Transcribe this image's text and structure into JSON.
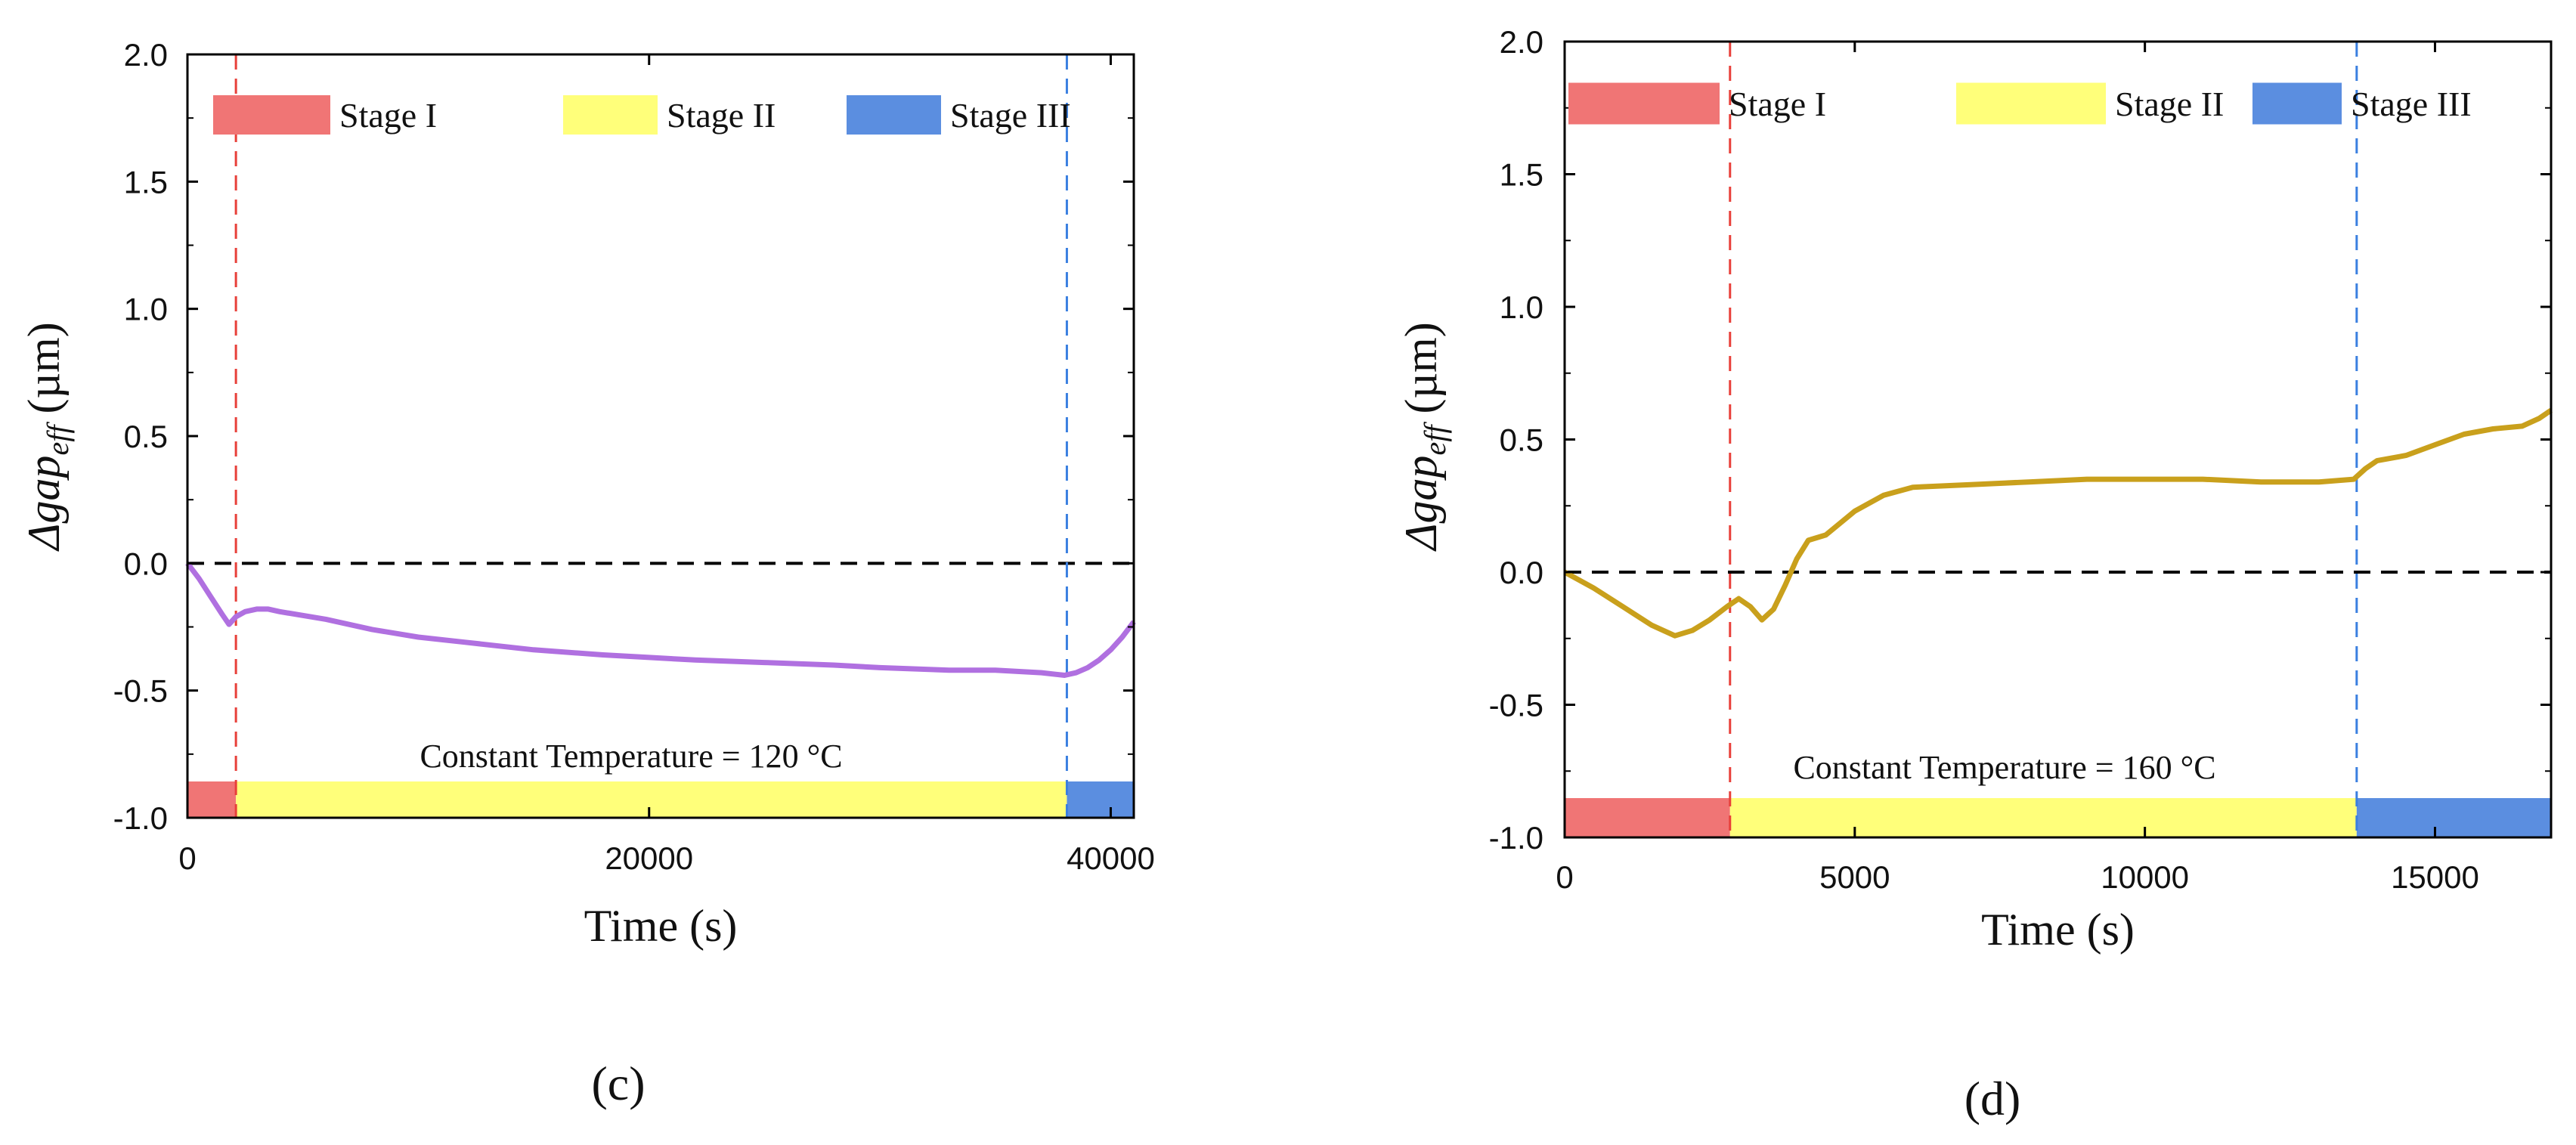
{
  "chart_data": [
    {
      "type": "line",
      "panel_label": "(c)",
      "xlabel": "Time (s)",
      "ylabel": {
        "prefix": "Δgap",
        "subscript": "eff",
        "suffix": " (µm)"
      },
      "xlim": [
        0,
        41000
      ],
      "ylim": [
        -1.0,
        2.0
      ],
      "xticks": [
        0,
        20000,
        40000
      ],
      "yticks": [
        -1.0,
        -0.5,
        0.0,
        0.5,
        1.0,
        1.5,
        2.0
      ],
      "ytick_labels": [
        "-1.0",
        "-0.5",
        "0.0",
        "0.5",
        "1.0",
        "1.5",
        "2.0"
      ],
      "legend": [
        {
          "label": "Stage I",
          "color": "#f07575"
        },
        {
          "label": "Stage II",
          "color": "#ffff7a"
        },
        {
          "label": "Stage III",
          "color": "#5b8ee0"
        }
      ],
      "stage_boundaries": [
        2100,
        38100
      ],
      "annotation": "Constant Temperature = 120 °C",
      "zero_line": 0.0,
      "series": [
        {
          "name": "120 °C",
          "color": "#b070e0",
          "x": [
            0,
            500,
            1000,
            1500,
            1800,
            2100,
            2500,
            3000,
            3500,
            4000,
            6000,
            8000,
            10000,
            12000,
            15000,
            18000,
            20000,
            22000,
            25000,
            28000,
            30000,
            33000,
            35000,
            37000,
            38000,
            38500,
            39000,
            39500,
            40000,
            40500,
            41000
          ],
          "y": [
            0.0,
            -0.06,
            -0.13,
            -0.2,
            -0.24,
            -0.21,
            -0.19,
            -0.18,
            -0.18,
            -0.19,
            -0.22,
            -0.26,
            -0.29,
            -0.31,
            -0.34,
            -0.36,
            -0.37,
            -0.38,
            -0.39,
            -0.4,
            -0.41,
            -0.42,
            -0.42,
            -0.43,
            -0.44,
            -0.43,
            -0.41,
            -0.38,
            -0.34,
            -0.29,
            -0.23
          ]
        }
      ]
    },
    {
      "type": "line",
      "panel_label": "(d)",
      "xlabel": "Time (s)",
      "ylabel": {
        "prefix": "Δgap",
        "subscript": "eff",
        "suffix": " (µm)"
      },
      "xlim": [
        0,
        17000
      ],
      "ylim": [
        -1.0,
        2.0
      ],
      "xticks": [
        0,
        5000,
        10000,
        15000
      ],
      "yticks": [
        -1.0,
        -0.5,
        0.0,
        0.5,
        1.0,
        1.5,
        2.0
      ],
      "ytick_labels": [
        "-1.0",
        "-0.5",
        "0.0",
        "0.5",
        "1.0",
        "1.5",
        "2.0"
      ],
      "legend": [
        {
          "label": "Stage I",
          "color": "#f07575"
        },
        {
          "label": "Stage II",
          "color": "#ffff7a"
        },
        {
          "label": "Stage III",
          "color": "#5b8ee0"
        }
      ],
      "stage_boundaries": [
        2850,
        13650
      ],
      "annotation": "Constant Temperature = 160 °C",
      "zero_line": 0.0,
      "series": [
        {
          "name": "160 °C",
          "color": "#c9a01c",
          "x": [
            0,
            500,
            1000,
            1500,
            1900,
            2200,
            2500,
            2800,
            3000,
            3200,
            3400,
            3600,
            3800,
            4000,
            4200,
            4500,
            5000,
            5500,
            6000,
            7000,
            8000,
            9000,
            10000,
            11000,
            12000,
            13000,
            13600,
            13800,
            14000,
            14500,
            15000,
            15500,
            16000,
            16500,
            16800,
            17000
          ],
          "y": [
            0.0,
            -0.06,
            -0.13,
            -0.2,
            -0.24,
            -0.22,
            -0.18,
            -0.13,
            -0.1,
            -0.13,
            -0.18,
            -0.14,
            -0.05,
            0.05,
            0.12,
            0.14,
            0.23,
            0.29,
            0.32,
            0.33,
            0.34,
            0.35,
            0.35,
            0.35,
            0.34,
            0.34,
            0.35,
            0.39,
            0.42,
            0.44,
            0.48,
            0.52,
            0.54,
            0.55,
            0.58,
            0.61
          ]
        }
      ]
    }
  ]
}
